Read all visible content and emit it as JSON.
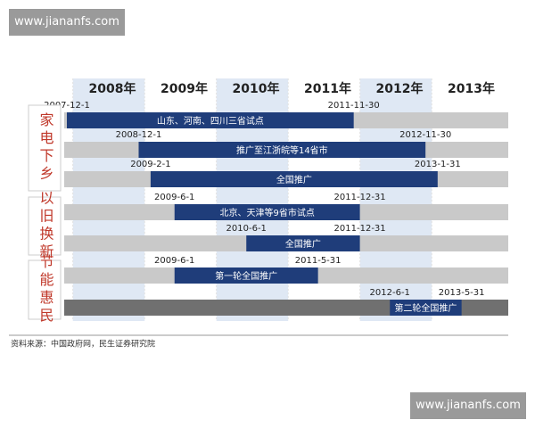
{
  "watermark_top": "www.jiananfs.com",
  "years": [
    "2008年",
    "2009年",
    "2010年",
    "2011年",
    "2012年",
    "2013年"
  ],
  "groups": [
    {
      "label": "家电下乡",
      "tasks": [
        {
          "label": "山东、河南、四川三省试点",
          "start": "2007-12-1",
          "end": "2011-11-30"
        },
        {
          "label": "推广至江浙皖等14省市",
          "start": "2008-12-1",
          "end": "2012-11-30"
        },
        {
          "label": "全国推广",
          "start": "2009-2-1",
          "end": "2013-1-31"
        }
      ]
    },
    {
      "label": "以旧换新",
      "tasks": [
        {
          "label": "北京、天津等9省市试点",
          "start": "2009-6-1",
          "end": "2011-12-31"
        },
        {
          "label": "全国推广",
          "start": "2010-6-1",
          "end": "2011-12-31"
        }
      ]
    },
    {
      "label": "节能惠民",
      "tasks": [
        {
          "label": "第一轮全国推广",
          "start": "2009-6-1",
          "end": "2011-5-31"
        },
        {
          "label": "第二轮全国推广",
          "start": "2012-6-1",
          "end": "2013-5-31"
        }
      ]
    }
  ],
  "source": "资料来源：中国政府网，民生证券研究院",
  "watermark_bottom": "www.jiananfs.com"
}
